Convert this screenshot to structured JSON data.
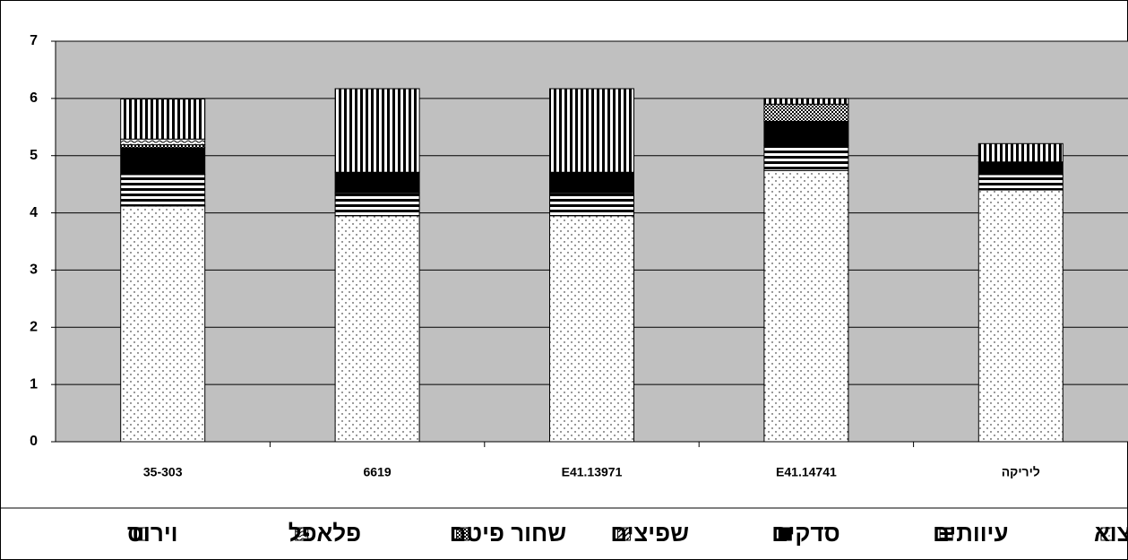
{
  "chart_data": {
    "type": "stacked-bar",
    "categories": [
      "35-303",
      "6619",
      "E41.13971",
      "E41.14741",
      "ליריקה"
    ],
    "series": [
      {
        "name": "יצוא",
        "color": "#ffffff",
        "pattern": "dots",
        "values": [
          4.12,
          3.95,
          3.95,
          4.74,
          4.4
        ]
      },
      {
        "name": "עיוותים",
        "color": "#ffffff",
        "pattern": "hstripes",
        "values": [
          0.55,
          0.4,
          0.4,
          0.44,
          0.27
        ]
      },
      {
        "name": "סדקים",
        "color": "#000000",
        "pattern": "solid",
        "values": [
          0.47,
          0.36,
          0.36,
          0.42,
          0.22
        ]
      },
      {
        "name": "שפיצים",
        "color": "#ffffff",
        "pattern": "diagonal",
        "values": [
          0,
          0,
          0,
          0,
          0
        ]
      },
      {
        "name": "שחור פיטם",
        "color": "#ffffff",
        "pattern": "checker",
        "values": [
          0.05,
          0,
          0,
          0.3,
          0
        ]
      },
      {
        "name": "פלאפל",
        "color": "#ffffff",
        "pattern": "wave",
        "values": [
          0.1,
          0,
          0,
          0,
          0
        ]
      },
      {
        "name": "וירוס",
        "color": "#ffffff",
        "pattern": "vstripes",
        "values": [
          0.7,
          1.46,
          1.46,
          0.1,
          0.32
        ]
      }
    ],
    "ylim": [
      0,
      7
    ],
    "yticks": [
      0,
      1,
      2,
      3,
      4,
      5,
      6,
      7
    ],
    "grid": true,
    "plot_background": "#c0c0c0"
  }
}
